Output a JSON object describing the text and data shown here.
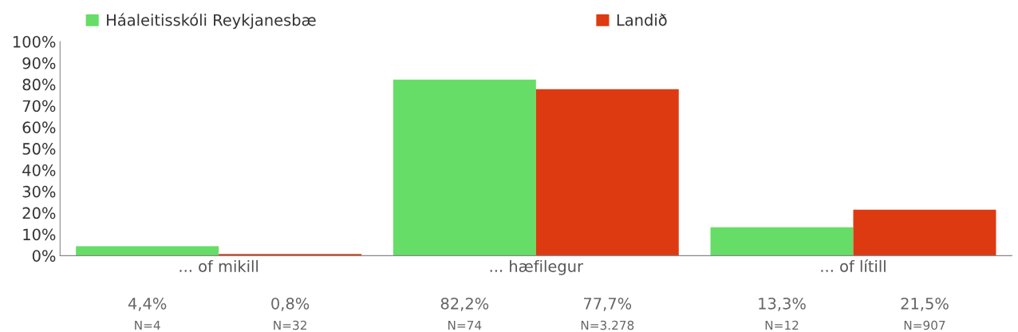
{
  "chart_data": {
    "type": "bar",
    "categories": [
      "... of mikill",
      "... hæfilegur",
      "... of lítill"
    ],
    "series": [
      {
        "name": "Háaleitisskóli Reykjanesbæ",
        "color": "#66dd66",
        "values": [
          4.4,
          82.2,
          13.3
        ],
        "value_labels": [
          "4,4%",
          "82,2%",
          "13,3%"
        ]
      },
      {
        "name": "Landið",
        "color": "#dd3a12",
        "values": [
          0.8,
          77.7,
          21.5
        ],
        "value_labels": [
          "0,8%",
          "77,7%",
          "21,5%"
        ]
      }
    ],
    "annotations": [
      "N=4",
      "N=32",
      "N=74",
      "N=3.278",
      "N=12",
      "N=907"
    ],
    "ylim": [
      0,
      100
    ],
    "yticks": [
      {
        "value": 0,
        "label": "0%"
      },
      {
        "value": 10,
        "label": "10%"
      },
      {
        "value": 20,
        "label": "20%"
      },
      {
        "value": 30,
        "label": "30%"
      },
      {
        "value": 40,
        "label": "40%"
      },
      {
        "value": 50,
        "label": "50%"
      },
      {
        "value": 60,
        "label": "60%"
      },
      {
        "value": 70,
        "label": "70%"
      },
      {
        "value": 80,
        "label": "80%"
      },
      {
        "value": 90,
        "label": "90%"
      },
      {
        "value": 100,
        "label": "100%"
      }
    ],
    "grid": false,
    "legend": "top"
  }
}
